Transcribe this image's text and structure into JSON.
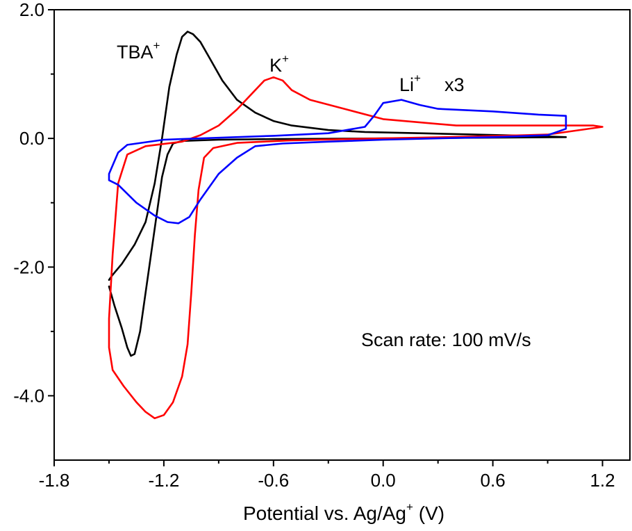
{
  "chart_data": {
    "type": "line",
    "xlabel": "Potential vs. Ag/Ag",
    "xlabel_sup": "+",
    "xlabel_suffix": " (V)",
    "ylabel": "",
    "xlim": [
      -1.8,
      1.35
    ],
    "ylim": [
      -5.0,
      2.0
    ],
    "x_ticks": [
      -1.8,
      -1.2,
      -0.6,
      0.0,
      0.6,
      1.2
    ],
    "x_tick_labels": [
      "-1.8",
      "-1.2",
      "-0.6",
      "0.0",
      "0.6",
      "1.2"
    ],
    "y_ticks": [
      2.0,
      0.0,
      -2.0,
      -4.0
    ],
    "y_tick_labels": [
      "2.0",
      "0.0",
      "-2.0",
      "-4.0"
    ],
    "grid": false,
    "annotations": {
      "tba": {
        "text": "TBA",
        "sup": "+"
      },
      "k": {
        "text": "K",
        "sup": "+"
      },
      "li": {
        "text": "Li",
        "sup": "+"
      },
      "li_scale": "x3",
      "scan_rate": "Scan rate: 100 mV/s"
    },
    "series": [
      {
        "color": "#000000",
        "points": [
          [
            -1.5,
            -2.3
          ],
          [
            -1.47,
            -2.6
          ],
          [
            -1.43,
            -2.95
          ],
          [
            -1.4,
            -3.25
          ],
          [
            -1.38,
            -3.38
          ],
          [
            -1.36,
            -3.35
          ],
          [
            -1.33,
            -3.0
          ],
          [
            -1.3,
            -2.4
          ],
          [
            -1.27,
            -1.8
          ],
          [
            -1.24,
            -1.2
          ],
          [
            -1.21,
            -0.6
          ],
          [
            -1.18,
            -0.25
          ],
          [
            -1.15,
            -0.08
          ],
          [
            -1.1,
            -0.04
          ],
          [
            -0.9,
            -0.02
          ],
          [
            -0.6,
            -0.01
          ],
          [
            0.0,
            0.0
          ],
          [
            0.5,
            0.01
          ],
          [
            1.0,
            0.02
          ],
          [
            0.8,
            0.04
          ],
          [
            0.5,
            0.06
          ],
          [
            0.2,
            0.08
          ],
          [
            -0.1,
            0.1
          ],
          [
            -0.3,
            0.13
          ],
          [
            -0.5,
            0.2
          ],
          [
            -0.6,
            0.27
          ],
          [
            -0.7,
            0.4
          ],
          [
            -0.8,
            0.6
          ],
          [
            -0.88,
            0.9
          ],
          [
            -0.95,
            1.25
          ],
          [
            -1.0,
            1.5
          ],
          [
            -1.04,
            1.62
          ],
          [
            -1.07,
            1.66
          ],
          [
            -1.1,
            1.58
          ],
          [
            -1.13,
            1.3
          ],
          [
            -1.17,
            0.8
          ],
          [
            -1.21,
            0.0
          ],
          [
            -1.25,
            -0.7
          ],
          [
            -1.3,
            -1.3
          ],
          [
            -1.36,
            -1.65
          ],
          [
            -1.43,
            -1.95
          ],
          [
            -1.48,
            -2.12
          ],
          [
            -1.5,
            -2.2
          ]
        ]
      },
      {
        "color": "#ff0000",
        "points": [
          [
            -1.5,
            -3.25
          ],
          [
            -1.48,
            -3.6
          ],
          [
            -1.42,
            -3.85
          ],
          [
            -1.35,
            -4.1
          ],
          [
            -1.3,
            -4.25
          ],
          [
            -1.25,
            -4.35
          ],
          [
            -1.2,
            -4.3
          ],
          [
            -1.15,
            -4.1
          ],
          [
            -1.1,
            -3.7
          ],
          [
            -1.07,
            -3.2
          ],
          [
            -1.05,
            -2.4
          ],
          [
            -1.03,
            -1.5
          ],
          [
            -1.01,
            -0.8
          ],
          [
            -0.98,
            -0.3
          ],
          [
            -0.93,
            -0.15
          ],
          [
            -0.8,
            -0.07
          ],
          [
            -0.5,
            -0.03
          ],
          [
            0.0,
            0.0
          ],
          [
            0.5,
            0.03
          ],
          [
            0.9,
            0.06
          ],
          [
            1.2,
            0.18
          ],
          [
            1.15,
            0.2
          ],
          [
            0.8,
            0.2
          ],
          [
            0.4,
            0.2
          ],
          [
            0.0,
            0.3
          ],
          [
            -0.2,
            0.45
          ],
          [
            -0.4,
            0.6
          ],
          [
            -0.5,
            0.75
          ],
          [
            -0.55,
            0.9
          ],
          [
            -0.6,
            0.95
          ],
          [
            -0.65,
            0.9
          ],
          [
            -0.7,
            0.75
          ],
          [
            -0.8,
            0.45
          ],
          [
            -0.9,
            0.2
          ],
          [
            -1.0,
            0.05
          ],
          [
            -1.1,
            -0.05
          ],
          [
            -1.3,
            -0.12
          ],
          [
            -1.4,
            -0.25
          ],
          [
            -1.45,
            -0.7
          ],
          [
            -1.48,
            -1.8
          ],
          [
            -1.5,
            -2.8
          ],
          [
            -1.5,
            -3.25
          ]
        ]
      },
      {
        "color": "#0000ff",
        "points": [
          [
            -1.5,
            -0.65
          ],
          [
            -1.45,
            -0.72
          ],
          [
            -1.35,
            -1.0
          ],
          [
            -1.25,
            -1.2
          ],
          [
            -1.18,
            -1.3
          ],
          [
            -1.12,
            -1.32
          ],
          [
            -1.06,
            -1.22
          ],
          [
            -1.0,
            -0.95
          ],
          [
            -0.9,
            -0.55
          ],
          [
            -0.8,
            -0.3
          ],
          [
            -0.7,
            -0.12
          ],
          [
            -0.55,
            -0.08
          ],
          [
            -0.3,
            -0.05
          ],
          [
            0.0,
            -0.02
          ],
          [
            0.3,
            0.0
          ],
          [
            0.6,
            0.02
          ],
          [
            0.9,
            0.05
          ],
          [
            1.0,
            0.15
          ],
          [
            1.0,
            0.35
          ],
          [
            0.85,
            0.37
          ],
          [
            0.6,
            0.42
          ],
          [
            0.3,
            0.46
          ],
          [
            0.2,
            0.52
          ],
          [
            0.1,
            0.6
          ],
          [
            0.0,
            0.55
          ],
          [
            -0.05,
            0.35
          ],
          [
            -0.1,
            0.18
          ],
          [
            -0.3,
            0.08
          ],
          [
            -0.6,
            0.04
          ],
          [
            -0.9,
            0.01
          ],
          [
            -1.2,
            -0.02
          ],
          [
            -1.4,
            -0.1
          ],
          [
            -1.45,
            -0.22
          ],
          [
            -1.5,
            -0.55
          ],
          [
            -1.5,
            -0.65
          ]
        ]
      }
    ]
  }
}
